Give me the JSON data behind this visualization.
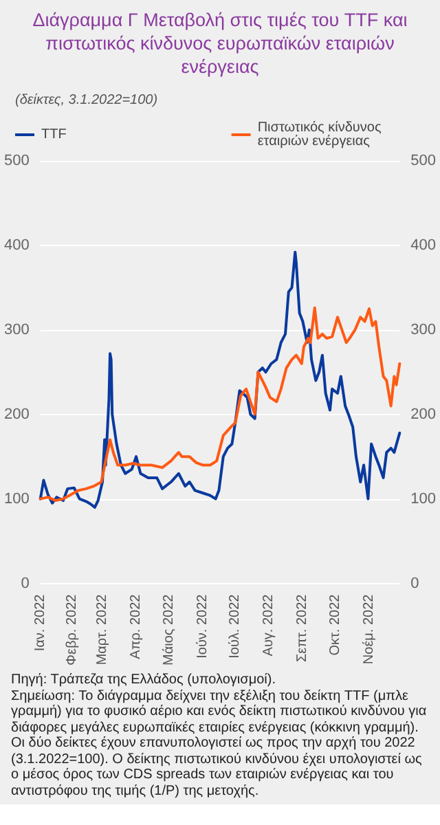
{
  "chart_data": {
    "type": "line",
    "title": "Διάγραμμα Γ Μεταβολή στις τιμές του TTF και πιστωτικός κίνδυνος ευρωπαϊκών εταιριών ενέργειας",
    "subtitle": "(δείκτες, 3.1.2022=100)",
    "annotations": [
      "Πηγή: Τράπεζα της Ελλάδος (υπολογισμοί).",
      "Σημείωση: Το διάγραμμα δείχνει την εξέλιξη του δείκτη TTF (μπλε γραμμή) για το φυσικό αέριο και ενός δείκτη πιστωτικού κινδύνου για διάφορες μεγάλες ευρωπαϊκές εταιρίες ενέργειας (κόκκινη γραμμή). Οι δύο δείκτες έχουν επανυπολογιστεί ως προς την αρχή του 2022 (3.1.2022=100). Ο δείκτης πιστωτικού κινδύνου έχει υπολογιστεί ως ο μέσος όρος των CDS spreads των εταιριών ενέργειας και του αντιστρόφου της τιμής (1/P) της μετοχής."
    ],
    "xlim": [
      "2022-01-03",
      "2022-11-29"
    ],
    "xticks": [
      {
        "value": "2022-01-03",
        "label": "Ιαν. 2022"
      },
      {
        "value": "2022-02-01",
        "label": "Φεβρ. 2022"
      },
      {
        "value": "2022-03-01",
        "label": "Μαρτ. 2022"
      },
      {
        "value": "2022-04-01",
        "label": "Απρ. 2022"
      },
      {
        "value": "2022-05-01",
        "label": "Μάιος 2022"
      },
      {
        "value": "2022-06-01",
        "label": "Ιούν. 2022"
      },
      {
        "value": "2022-07-01",
        "label": "Ιούλ. 2022"
      },
      {
        "value": "2022-08-01",
        "label": "Αυγ. 2022"
      },
      {
        "value": "2022-09-01",
        "label": "Σεπτ. 2022"
      },
      {
        "value": "2022-10-01",
        "label": "Οκτ. 2022"
      },
      {
        "value": "2022-11-01",
        "label": "Νοέμ. 2022"
      }
    ],
    "ylim": [
      0,
      500
    ],
    "yticks": [
      0,
      100,
      200,
      300,
      400,
      500
    ],
    "y2lim": [
      0,
      500
    ],
    "y2ticks": [
      0,
      100,
      200,
      300,
      400,
      500
    ],
    "grid": "y",
    "legend": "top",
    "marker": "none",
    "line_style": "solid",
    "series": [
      {
        "name": "TTF",
        "color": "#0a3a9e",
        "x": [
          "2022-01-03",
          "2022-01-06",
          "2022-01-10",
          "2022-01-14",
          "2022-01-18",
          "2022-01-24",
          "2022-01-28",
          "2022-02-03",
          "2022-02-08",
          "2022-02-14",
          "2022-02-18",
          "2022-02-22",
          "2022-02-25",
          "2022-03-01",
          "2022-03-03",
          "2022-03-04",
          "2022-03-07",
          "2022-03-08",
          "2022-03-09",
          "2022-03-10",
          "2022-03-14",
          "2022-03-18",
          "2022-03-22",
          "2022-03-28",
          "2022-04-01",
          "2022-04-05",
          "2022-04-12",
          "2022-04-20",
          "2022-04-25",
          "2022-05-03",
          "2022-05-10",
          "2022-05-16",
          "2022-05-20",
          "2022-05-25",
          "2022-06-01",
          "2022-06-08",
          "2022-06-13",
          "2022-06-16",
          "2022-06-20",
          "2022-06-24",
          "2022-06-28",
          "2022-07-01",
          "2022-07-05",
          "2022-07-08",
          "2022-07-12",
          "2022-07-15",
          "2022-07-19",
          "2022-07-22",
          "2022-07-26",
          "2022-07-29",
          "2022-08-03",
          "2022-08-08",
          "2022-08-12",
          "2022-08-16",
          "2022-08-19",
          "2022-08-22",
          "2022-08-25",
          "2022-08-26",
          "2022-08-29",
          "2022-09-01",
          "2022-09-05",
          "2022-09-07",
          "2022-09-09",
          "2022-09-13",
          "2022-09-16",
          "2022-09-19",
          "2022-09-22",
          "2022-09-26",
          "2022-09-28",
          "2022-10-03",
          "2022-10-06",
          "2022-10-10",
          "2022-10-13",
          "2022-10-17",
          "2022-10-20",
          "2022-10-24",
          "2022-10-27",
          "2022-10-31",
          "2022-11-03",
          "2022-11-07",
          "2022-11-10",
          "2022-11-14",
          "2022-11-17",
          "2022-11-21",
          "2022-11-24",
          "2022-11-29"
        ],
        "values": [
          100,
          122,
          105,
          95,
          102,
          98,
          112,
          113,
          100,
          97,
          94,
          90,
          98,
          120,
          170,
          140,
          218,
          272,
          265,
          200,
          165,
          140,
          130,
          135,
          150,
          130,
          125,
          125,
          112,
          120,
          130,
          115,
          120,
          110,
          107,
          104,
          100,
          110,
          150,
          160,
          165,
          190,
          228,
          225,
          220,
          200,
          195,
          250,
          255,
          250,
          260,
          265,
          285,
          295,
          345,
          350,
          392,
          380,
          320,
          310,
          285,
          300,
          265,
          240,
          250,
          270,
          225,
          205,
          230,
          225,
          245,
          210,
          200,
          185,
          150,
          120,
          140,
          100,
          165,
          150,
          140,
          125,
          155,
          160,
          155,
          178
        ]
      },
      {
        "name": "Πιστωτικός κίνδυνος εταιριών ενέργειας",
        "color": "#ff5a14",
        "x": [
          "2022-01-03",
          "2022-01-10",
          "2022-01-17",
          "2022-01-24",
          "2022-01-31",
          "2022-02-07",
          "2022-02-14",
          "2022-02-21",
          "2022-02-28",
          "2022-03-04",
          "2022-03-08",
          "2022-03-11",
          "2022-03-15",
          "2022-03-22",
          "2022-03-29",
          "2022-04-05",
          "2022-04-15",
          "2022-04-25",
          "2022-05-03",
          "2022-05-10",
          "2022-05-13",
          "2022-05-20",
          "2022-05-26",
          "2022-06-01",
          "2022-06-08",
          "2022-06-14",
          "2022-06-20",
          "2022-06-27",
          "2022-07-01",
          "2022-07-06",
          "2022-07-11",
          "2022-07-15",
          "2022-07-19",
          "2022-07-22",
          "2022-07-26",
          "2022-07-29",
          "2022-08-02",
          "2022-08-08",
          "2022-08-12",
          "2022-08-17",
          "2022-08-22",
          "2022-08-26",
          "2022-08-31",
          "2022-09-02",
          "2022-09-06",
          "2022-09-08",
          "2022-09-12",
          "2022-09-15",
          "2022-09-19",
          "2022-09-23",
          "2022-09-28",
          "2022-10-03",
          "2022-10-07",
          "2022-10-11",
          "2022-10-14",
          "2022-10-19",
          "2022-10-24",
          "2022-10-28",
          "2022-11-01",
          "2022-11-04",
          "2022-11-07",
          "2022-11-10",
          "2022-11-14",
          "2022-11-17",
          "2022-11-21",
          "2022-11-24",
          "2022-11-26",
          "2022-11-29"
        ],
        "values": [
          100,
          102,
          98,
          100,
          105,
          110,
          112,
          115,
          120,
          145,
          170,
          155,
          140,
          140,
          142,
          140,
          140,
          137,
          145,
          155,
          150,
          150,
          143,
          140,
          140,
          145,
          175,
          185,
          190,
          222,
          230,
          215,
          200,
          250,
          240,
          232,
          220,
          215,
          230,
          255,
          265,
          270,
          260,
          280,
          290,
          285,
          326,
          290,
          295,
          290,
          292,
          315,
          300,
          285,
          290,
          300,
          315,
          310,
          325,
          305,
          310,
          280,
          245,
          240,
          210,
          245,
          235,
          260
        ]
      }
    ]
  }
}
